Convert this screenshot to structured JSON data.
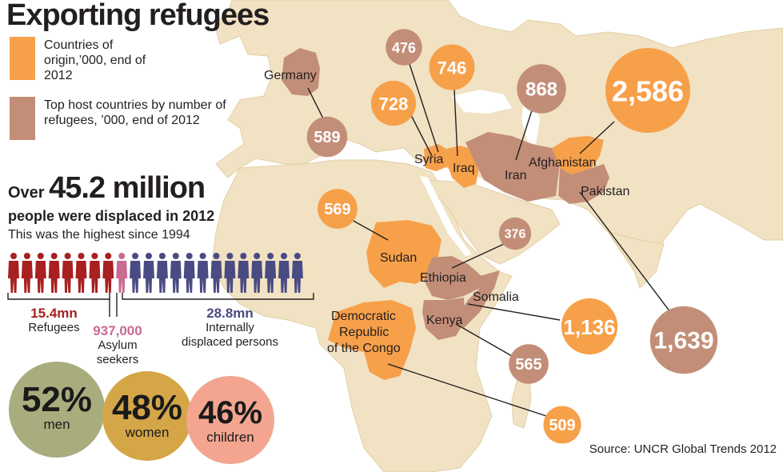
{
  "title": "Exporting refugees",
  "legend": {
    "origin": {
      "label": "Countries of origin,’000, end of 2012",
      "color": "#f7a04a"
    },
    "host": {
      "label": "Top host countries by number of refugees, ’000, end of 2012",
      "color": "#c38e78"
    }
  },
  "headline": {
    "prefix": "Over",
    "big": "45.2 million",
    "line2": "people were displaced in 2012",
    "line3": "This was the highest since 1994"
  },
  "breakdown": {
    "refugees": {
      "value": "15.4mn",
      "label": "Refugees",
      "color": "#a8201f",
      "figures": 8
    },
    "asylum": {
      "value": "937,000",
      "label1": "Asylum",
      "label2": "seekers",
      "color": "#c76b93",
      "figures": 1
    },
    "idp": {
      "value": "28.8mn",
      "label1": "Internally",
      "label2": "displaced persons",
      "color": "#4b4b83",
      "figures": 13
    }
  },
  "demographics": [
    {
      "value": "52%",
      "label": "men",
      "color": "#a9ad7e"
    },
    {
      "value": "48%",
      "label": "women",
      "color": "#d5a648"
    },
    {
      "value": "46%",
      "label": "children",
      "color": "#f3a58f"
    }
  ],
  "countries": [
    {
      "name": "Germany",
      "type": "host",
      "value": 589
    },
    {
      "name": "Syria",
      "type": "origin",
      "value": 728
    },
    {
      "name": "Syria",
      "type": "host",
      "value": 476
    },
    {
      "name": "Iraq",
      "type": "origin",
      "value": 746
    },
    {
      "name": "Iran",
      "type": "host",
      "value": 868
    },
    {
      "name": "Afghanistan",
      "type": "origin",
      "value": 2586
    },
    {
      "name": "Pakistan",
      "type": "host",
      "value": 1639
    },
    {
      "name": "Sudan",
      "type": "origin",
      "value": 569
    },
    {
      "name": "Ethiopia",
      "type": "host",
      "value": 376
    },
    {
      "name": "Somalia",
      "type": "origin",
      "value": 1136
    },
    {
      "name": "Kenya",
      "type": "host",
      "value": 565
    },
    {
      "name": "Democratic Republic of the Congo",
      "type": "origin",
      "value": 509
    }
  ],
  "bubble_labels": {
    "germany": "589",
    "syria_host": "476",
    "syria_origin": "728",
    "iraq": "746",
    "iran": "868",
    "afghanistan": "2,586",
    "pakistan": "1,639",
    "sudan": "569",
    "ethiopia": "376",
    "somalia": "1,136",
    "kenya": "565",
    "drc": "509"
  },
  "map_labels": {
    "germany": "Germany",
    "syria": "Syria",
    "iraq": "Iraq",
    "iran": "Iran",
    "afghanistan": "Afghanistan",
    "pakistan": "Pakistan",
    "sudan": "Sudan",
    "ethiopia": "Ethiopia",
    "somalia": "Somalia",
    "kenya": "Kenya",
    "drc1": "Democratic",
    "drc2": "Republic",
    "drc3": "of the Congo"
  },
  "source": "Source: UNCR Global Trends 2012",
  "colors": {
    "land": "#f1e2c3",
    "land_edge": "#e2cfa6",
    "sea": "#ffffff",
    "origin": "#f7a04a",
    "host": "#c38e78",
    "leader": "#231f20"
  }
}
